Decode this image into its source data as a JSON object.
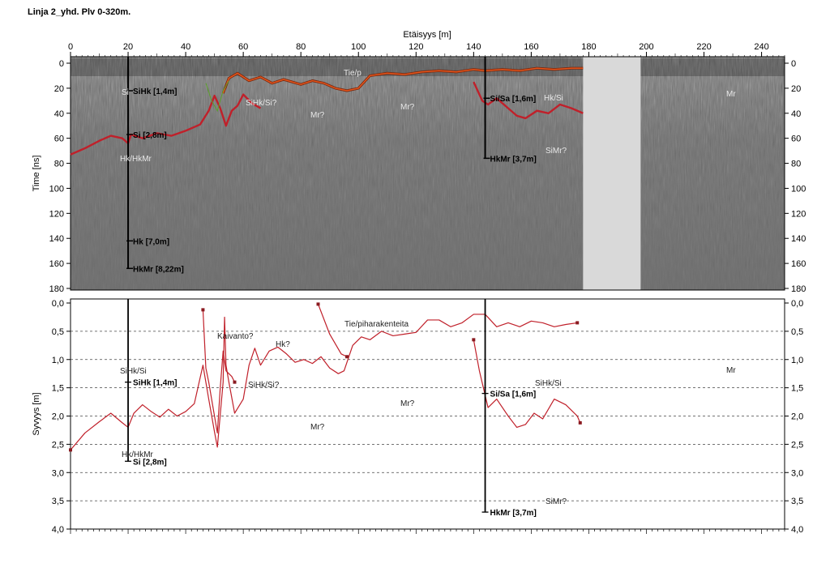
{
  "title": "Linja 2_yhd. Plv 0-320m.",
  "colors": {
    "profile": "#c0202a",
    "road": "#e8561c",
    "road_dark": "#7a2a10",
    "borehole": "#000000",
    "gap": "#d9d9d9"
  },
  "chart_data": [
    {
      "type": "line",
      "title": "",
      "xlabel": "Etäisyys [m]",
      "ylabel": "Time [ns]",
      "xlim": [
        0,
        248
      ],
      "ylim": [
        180,
        0
      ],
      "x_ticks": [
        "0",
        "20",
        "40",
        "60",
        "80",
        "100",
        "120",
        "140",
        "160",
        "180",
        "200",
        "220",
        "240"
      ],
      "y_ticks": [
        "0",
        "20",
        "40",
        "60",
        "80",
        "100",
        "120",
        "140",
        "160",
        "180"
      ],
      "no_data_range": [
        178,
        198
      ],
      "series": [
        {
          "values": [
            [
              0,
              73
            ],
            [
              5,
              68
            ],
            [
              10,
              62
            ],
            [
              14,
              58
            ],
            [
              18,
              60
            ],
            [
              20,
              64
            ],
            [
              21,
              57
            ],
            [
              25,
              60
            ],
            [
              30,
              56
            ],
            [
              35,
              58
            ],
            [
              40,
              54
            ],
            [
              45,
              49
            ],
            [
              48,
              38
            ],
            [
              50,
              26
            ],
            [
              52,
              36
            ],
            [
              54,
              50
            ],
            [
              56,
              38
            ],
            [
              58,
              34
            ],
            [
              60,
              25
            ],
            [
              63,
              32
            ],
            [
              66,
              36
            ]
          ]
        },
        {
          "values": [
            [
              53,
              24
            ],
            [
              55,
              12
            ],
            [
              58,
              8
            ],
            [
              62,
              14
            ],
            [
              66,
              11
            ],
            [
              70,
              16
            ],
            [
              74,
              13
            ],
            [
              80,
              17
            ],
            [
              84,
              14
            ],
            [
              88,
              16
            ],
            [
              92,
              20
            ],
            [
              96,
              22
            ],
            [
              100,
              20
            ],
            [
              104,
              10
            ],
            [
              110,
              8
            ],
            [
              116,
              9
            ],
            [
              122,
              7
            ],
            [
              128,
              6
            ],
            [
              134,
              7
            ],
            [
              140,
              5
            ],
            [
              144,
              6
            ],
            [
              150,
              5
            ],
            [
              156,
              6
            ],
            [
              162,
              4
            ],
            [
              168,
              5
            ],
            [
              174,
              4
            ],
            [
              178,
              4
            ]
          ]
        },
        {
          "values": [
            [
              140,
              15
            ],
            [
              143,
              30
            ],
            [
              145,
              33
            ],
            [
              148,
              28
            ],
            [
              152,
              36
            ],
            [
              155,
              42
            ],
            [
              158,
              44
            ],
            [
              162,
              38
            ],
            [
              166,
              40
            ],
            [
              170,
              33
            ],
            [
              174,
              36
            ],
            [
              178,
              40
            ]
          ]
        }
      ],
      "boreholes": [
        {
          "x": 20,
          "depths_ns": [
            22,
            57,
            142,
            164
          ],
          "labels": [
            "SiHk [1,4m]",
            "Si [2,8m]",
            "Hk [7,0m]",
            "HkMr [8,22m]"
          ]
        },
        {
          "x": 144,
          "depths_ns": [
            28,
            76
          ],
          "labels": [
            "Si/Sa [1,6m]",
            "HkMr [3,7m]"
          ]
        }
      ],
      "annotations": [
        "Si",
        "Hk/HkMr",
        "SiHk/Si?",
        "Mr?",
        "Mr?",
        "Tie/p",
        "Hk/Si",
        "SiMr?",
        "Mr"
      ]
    },
    {
      "type": "line",
      "title": "",
      "xlabel": "",
      "ylabel": "Syvyys [m]",
      "xlim": [
        0,
        248
      ],
      "ylim": [
        4.0,
        0.0
      ],
      "y_ticks": [
        "0,0",
        "0,5",
        "1,0",
        "1,5",
        "2,0",
        "2,5",
        "3,0",
        "3,5",
        "4,0"
      ],
      "series": [
        {
          "values": [
            [
              0,
              2.6
            ],
            [
              5,
              2.3
            ],
            [
              10,
              2.1
            ],
            [
              14,
              1.95
            ],
            [
              18,
              2.12
            ],
            [
              20,
              2.2
            ],
            [
              22,
              1.95
            ],
            [
              25,
              1.8
            ],
            [
              28,
              1.92
            ],
            [
              31,
              2.02
            ],
            [
              34,
              1.88
            ],
            [
              37,
              2.0
            ],
            [
              40,
              1.92
            ],
            [
              43,
              1.78
            ],
            [
              46,
              1.1
            ],
            [
              48,
              1.7
            ],
            [
              50,
              2.28
            ],
            [
              51,
              2.55
            ],
            [
              53,
              1.4
            ],
            [
              53.5,
              0.25
            ],
            [
              54,
              1.1
            ],
            [
              55,
              1.4
            ],
            [
              57,
              1.95
            ],
            [
              60,
              1.7
            ],
            [
              62,
              1.1
            ],
            [
              64,
              0.8
            ],
            [
              66,
              1.1
            ],
            [
              69,
              0.85
            ],
            [
              72,
              0.78
            ],
            [
              75,
              0.9
            ],
            [
              78,
              1.05
            ],
            [
              81,
              1.0
            ],
            [
              84,
              1.07
            ],
            [
              87,
              0.95
            ],
            [
              90,
              1.15
            ],
            [
              93,
              1.25
            ],
            [
              95,
              1.2
            ],
            [
              98,
              0.75
            ],
            [
              101,
              0.6
            ],
            [
              104,
              0.65
            ],
            [
              108,
              0.5
            ],
            [
              112,
              0.58
            ],
            [
              116,
              0.55
            ],
            [
              120,
              0.52
            ],
            [
              124,
              0.3
            ],
            [
              128,
              0.3
            ],
            [
              132,
              0.42
            ],
            [
              136,
              0.35
            ],
            [
              140,
              0.2
            ],
            [
              144,
              0.2
            ],
            [
              148,
              0.42
            ],
            [
              152,
              0.35
            ],
            [
              156,
              0.42
            ],
            [
              160,
              0.32
            ],
            [
              164,
              0.35
            ],
            [
              168,
              0.42
            ],
            [
              172,
              0.38
            ],
            [
              176,
              0.35
            ]
          ]
        },
        {
          "values": [
            [
              46,
              0.12
            ],
            [
              47,
              1.15
            ],
            [
              48,
              1.4
            ],
            [
              50,
              2.0
            ],
            [
              51,
              2.3
            ],
            [
              52,
              1.5
            ],
            [
              53,
              0.85
            ],
            [
              54,
              1.2
            ],
            [
              56,
              1.3
            ],
            [
              57,
              1.4
            ]
          ]
        },
        {
          "values": [
            [
              86,
              0.02
            ],
            [
              90,
              0.55
            ],
            [
              94,
              0.9
            ],
            [
              96,
              0.95
            ]
          ]
        },
        {
          "values": [
            [
              140,
              0.65
            ],
            [
              142,
              1.2
            ],
            [
              145,
              1.85
            ],
            [
              148,
              1.7
            ],
            [
              152,
              2.0
            ],
            [
              155,
              2.2
            ],
            [
              158,
              2.15
            ],
            [
              161,
              1.95
            ],
            [
              164,
              2.05
            ],
            [
              168,
              1.7
            ],
            [
              172,
              1.8
            ],
            [
              176,
              2.0
            ],
            [
              177,
              2.12
            ]
          ]
        }
      ],
      "boreholes": [
        {
          "x": 20,
          "depths_m": [
            1.4,
            2.8
          ],
          "labels": [
            "SiHk [1,4m]",
            "Si [2,8m]"
          ]
        },
        {
          "x": 144,
          "depths_m": [
            1.6,
            3.7
          ],
          "labels": [
            "Si/Sa [1,6m]",
            "HkMr [3,7m]"
          ]
        }
      ],
      "annotations": [
        "SiHk/Si",
        "Hk/HkMr",
        "Kaivanto?",
        "Hk?",
        "SiHk/Si?",
        "Mr?",
        "Mr?",
        "Tie/piharakenteita",
        "SiHk/Si",
        "Mr",
        "SiMr?"
      ]
    }
  ]
}
